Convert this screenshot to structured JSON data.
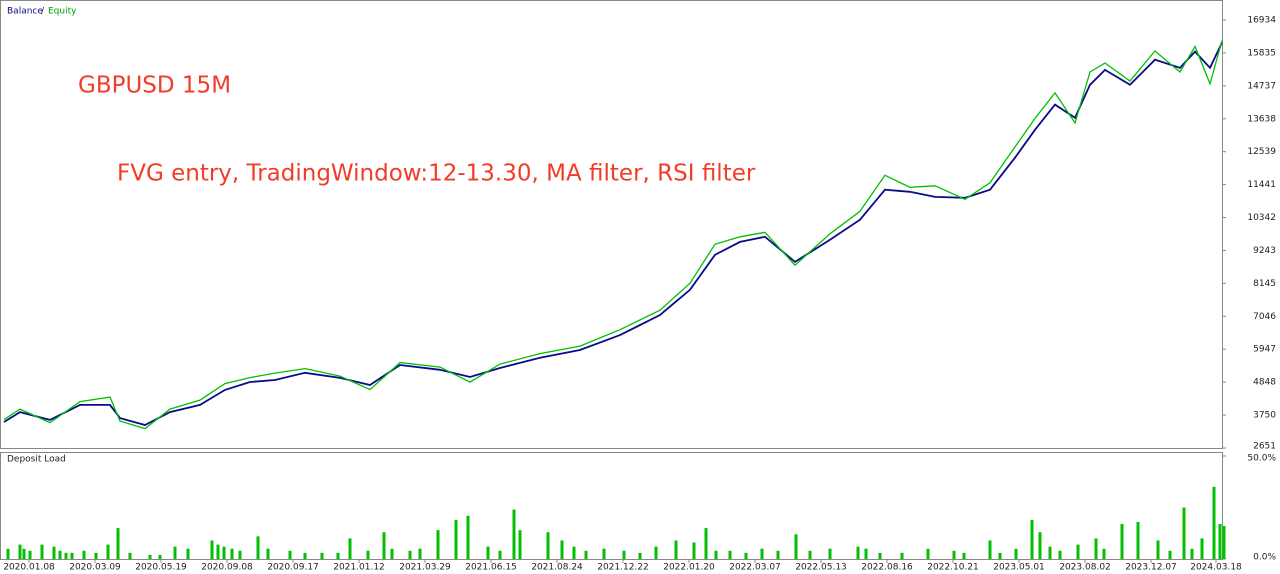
{
  "chart_data": [
    {
      "type": "line",
      "annotations": [
        "GBPUSD 15M",
        "FVG entry, TradingWindow:12-13.30, MA filter, RSI filter"
      ],
      "x": [
        0,
        16,
        46,
        76,
        106,
        116,
        141,
        166,
        196,
        221,
        246,
        271,
        301,
        336,
        366,
        396,
        436,
        466,
        496,
        536,
        576,
        616,
        656,
        686,
        711,
        736,
        761,
        791,
        826,
        856,
        881,
        906,
        931,
        961,
        986,
        1011,
        1031,
        1051,
        1071,
        1086,
        1101,
        1126,
        1151,
        1176,
        1191,
        1206,
        1218
      ],
      "series": [
        {
          "name": "Balance",
          "color": "#0a0a8c",
          "values": [
            3520,
            3850,
            3590,
            4090,
            4090,
            3650,
            3420,
            3850,
            4090,
            4590,
            4855,
            4920,
            5160,
            4990,
            4755,
            5420,
            5260,
            5020,
            5320,
            5660,
            5920,
            6420,
            7090,
            7930,
            9100,
            9530,
            9700,
            8860,
            9600,
            10270,
            11270,
            11200,
            11030,
            11000,
            11270,
            12340,
            13270,
            14110,
            13670,
            14770,
            15270,
            14770,
            15610,
            15340,
            15880,
            15340,
            16180
          ]
        },
        {
          "name": "Equity",
          "color": "#00c000",
          "values": [
            3600,
            3950,
            3500,
            4200,
            4350,
            3550,
            3300,
            3950,
            4250,
            4800,
            5000,
            5150,
            5300,
            5050,
            4600,
            5500,
            5350,
            4850,
            5450,
            5800,
            6050,
            6600,
            7250,
            8150,
            9450,
            9700,
            9850,
            8750,
            9800,
            10550,
            11750,
            11350,
            11400,
            10950,
            11500,
            12700,
            13650,
            14500,
            13500,
            15200,
            15500,
            14900,
            15900,
            15200,
            16050,
            14800,
            16250
          ]
        }
      ],
      "xlim": [
        0,
        1218
      ],
      "ylim": [
        2651,
        17468
      ],
      "yticks": [
        2651,
        3750,
        4848,
        5947,
        7046,
        8145,
        9243,
        10342,
        11441,
        12539,
        13638,
        14737,
        15835,
        16934
      ]
    },
    {
      "type": "bar",
      "title": "Deposit Load",
      "color": "#00c000",
      "x": [
        4,
        16,
        20,
        26,
        38,
        50,
        56,
        62,
        68,
        80,
        92,
        104,
        114,
        126,
        146,
        156,
        171,
        184,
        208,
        214,
        220,
        228,
        236,
        254,
        264,
        286,
        301,
        318,
        334,
        346,
        364,
        380,
        388,
        406,
        416,
        434,
        452,
        464,
        484,
        496,
        510,
        516,
        544,
        558,
        570,
        582,
        600,
        620,
        636,
        652,
        672,
        690,
        702,
        712,
        726,
        742,
        758,
        774,
        792,
        806,
        826,
        854,
        862,
        876,
        898,
        924,
        950,
        960,
        986,
        996,
        1012,
        1028,
        1036,
        1046,
        1056,
        1074,
        1092,
        1100,
        1118,
        1134,
        1154,
        1166,
        1180,
        1188,
        1198,
        1210,
        1216,
        1220
      ],
      "values": [
        5,
        7,
        5,
        4,
        7,
        6,
        4,
        3,
        3,
        4,
        3,
        7,
        15,
        3,
        2,
        2,
        6,
        5,
        9,
        7,
        6,
        5,
        4,
        11,
        5,
        4,
        3,
        3,
        3,
        10,
        4,
        13,
        5,
        4,
        5,
        14,
        19,
        21,
        6,
        4,
        24,
        14,
        13,
        9,
        6,
        4,
        5,
        4,
        3,
        6,
        9,
        8,
        15,
        4,
        4,
        3,
        5,
        4,
        12,
        4,
        5,
        6,
        5,
        3,
        3,
        5,
        4,
        3,
        9,
        3,
        5,
        19,
        13,
        6,
        4,
        7,
        10,
        5,
        17,
        18,
        9,
        4,
        25,
        5,
        10,
        35,
        17,
        16
      ],
      "xlim": [
        0,
        1218
      ],
      "ylim": [
        0,
        50
      ],
      "yticks": [
        {
          "value": 0,
          "label": "0.0%"
        },
        {
          "value": 50,
          "label": "50.0%"
        }
      ],
      "xticks": [
        {
          "value": 25,
          "label": "2020.01.08"
        },
        {
          "value": 91,
          "label": "2020.03.09"
        },
        {
          "value": 157,
          "label": "2020.05.19"
        },
        {
          "value": 223,
          "label": "2020.09.08"
        },
        {
          "value": 289,
          "label": "2020.09.17"
        },
        {
          "value": 355,
          "label": "2021.01.12"
        },
        {
          "value": 421,
          "label": "2021.03.29"
        },
        {
          "value": 487,
          "label": "2021.06.15"
        },
        {
          "value": 553,
          "label": "2021.08.24"
        },
        {
          "value": 619,
          "label": "2021.12.22"
        },
        {
          "value": 685,
          "label": "2022.01.20"
        },
        {
          "value": 751,
          "label": "2022.03.07"
        },
        {
          "value": 817,
          "label": "2022.05.13"
        },
        {
          "value": 883,
          "label": "2022.08.16"
        },
        {
          "value": 949,
          "label": "2022.10.21"
        },
        {
          "value": 1015,
          "label": "2023.05.01"
        },
        {
          "value": 1081,
          "label": "2023.08.02"
        },
        {
          "value": 1147,
          "label": "2023.12.07"
        },
        {
          "value": 1212,
          "label": "2024.03.18"
        }
      ]
    }
  ]
}
